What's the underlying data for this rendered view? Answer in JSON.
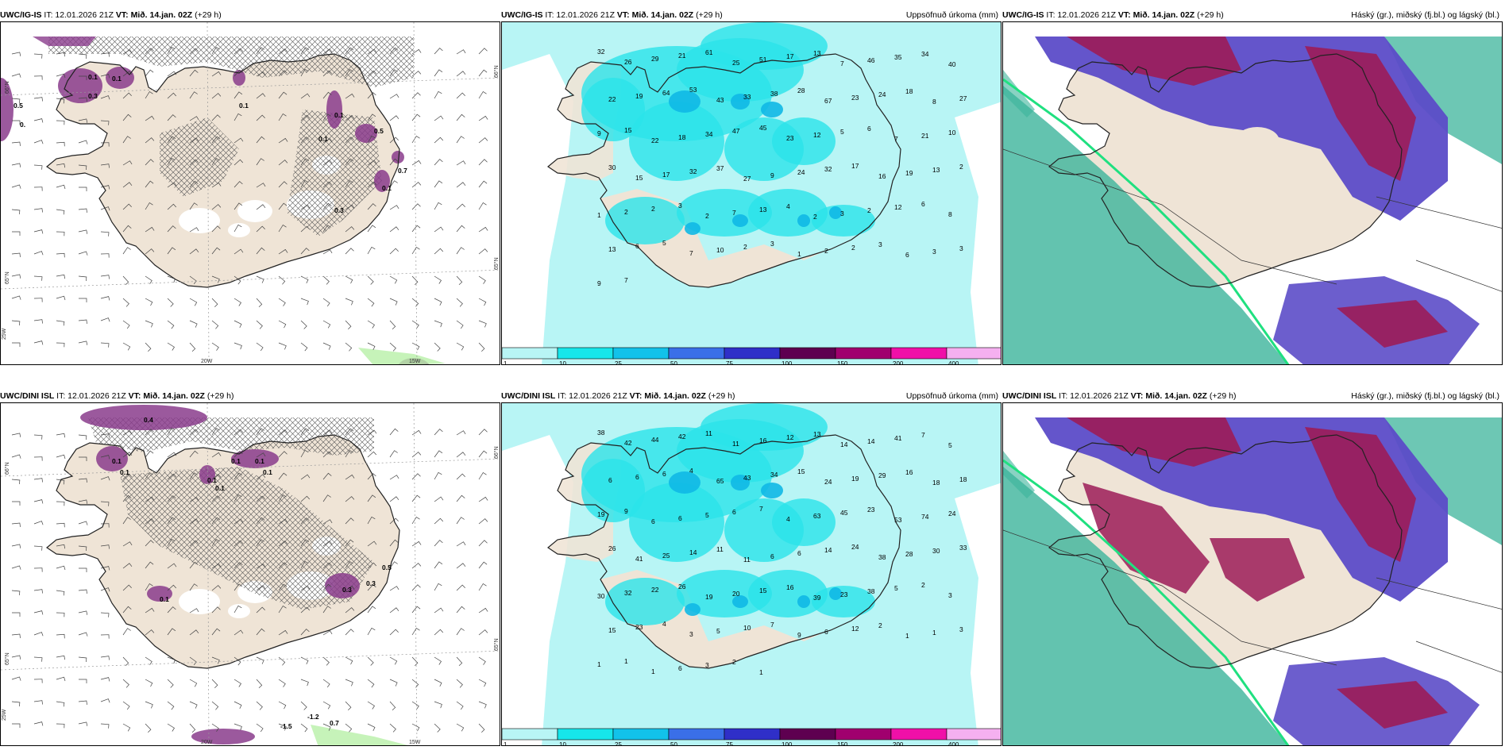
{
  "panels": [
    {
      "model": "UWC/IG-IS",
      "it": "IT: 12.01.2026 21Z",
      "vt_label": "VT:",
      "vt": "Mið. 14.jan. 02Z",
      "lead": "(+29 h)",
      "right_title": ""
    },
    {
      "model": "UWC/IG-IS",
      "it": "IT: 12.01.2026 21Z",
      "vt_label": "VT:",
      "vt": "Mið. 14.jan. 02Z",
      "lead": "(+29 h)",
      "right_title": "Uppsöfnuð úrkoma (mm)"
    },
    {
      "model": "UWC/IG-IS",
      "it": "IT: 12.01.2026 21Z",
      "vt_label": "VT:",
      "vt": "Mið. 14.jan. 02Z",
      "lead": "(+29 h)",
      "right_title": "Háský (gr.), miðský (fj.bl.) og lágský (bl.)"
    },
    {
      "model": "UWC/DINI ISL",
      "it": "IT: 12.01.2026 21Z",
      "vt_label": "VT:",
      "vt": "Mið. 14.jan. 02Z",
      "lead": "(+29 h)",
      "right_title": ""
    },
    {
      "model": "UWC/DINI ISL",
      "it": "IT: 12.01.2026 21Z",
      "vt_label": "VT:",
      "vt": "Mið. 14.jan. 02Z",
      "lead": "(+29 h)",
      "right_title": "Uppsöfnuð úrkoma (mm)"
    },
    {
      "model": "UWC/DINI ISL",
      "it": "IT: 12.01.2026 21Z",
      "vt_label": "VT:",
      "vt": "Mið. 14.jan. 02Z",
      "lead": "(+29 h)",
      "right_title": "Háský (gr.), miðský (fj.bl.) og lágský (bl.)"
    }
  ],
  "axis_labels": {
    "lat66": "66°N",
    "lat65": "65°N",
    "lon25": "25W",
    "lon20": "20W",
    "lon15": "15W"
  },
  "colorbar": {
    "labels": [
      "1",
      "10",
      "25",
      "50",
      "75",
      "100",
      "150",
      "200",
      "400"
    ],
    "colors": [
      "#b8f5f5",
      "#16e6ea",
      "#12c2ea",
      "#3a6fe8",
      "#2f2fc8",
      "#5e0050",
      "#a0006e",
      "#f010a8",
      "#f5b0f0"
    ]
  },
  "colors": {
    "land": "#efe4d6",
    "precip_light": "#b8f5f5",
    "precip_mid": "#2be3ea",
    "precip_strong": "#10b8e6",
    "purple": "#8a3c8c",
    "high_cloud": "#3cb49b",
    "mid_cloud": "#9c1c58",
    "low_cloud": "#5c4cc8"
  },
  "values": {
    "p0": [
      "0.5",
      "0.",
      "0.1",
      "0.1",
      "0.3",
      "0.1",
      "0.5",
      "0.7",
      "0.1",
      "0.1",
      "0.1",
      "0.3"
    ],
    "p1": [
      "32",
      "26",
      "29",
      "21",
      "61",
      "25",
      "51",
      "17",
      "13",
      "7",
      "46",
      "35",
      "34",
      "40",
      "22",
      "19",
      "64",
      "53",
      "43",
      "33",
      "38",
      "28",
      "67",
      "23",
      "24",
      "18",
      "8",
      "27",
      "9",
      "15",
      "22",
      "18",
      "34",
      "47",
      "45",
      "23",
      "12",
      "5",
      "6",
      "7",
      "21",
      "10",
      "30",
      "15",
      "17",
      "32",
      "37",
      "27",
      "9",
      "24",
      "32",
      "17",
      "16",
      "19",
      "13",
      "2",
      "1",
      "2",
      "2",
      "3",
      "2",
      "7",
      "13",
      "4",
      "2",
      "3",
      "2",
      "12",
      "6",
      "8",
      "13",
      "6",
      "5",
      "7",
      "10",
      "2",
      "3",
      "1",
      "2",
      "2",
      "3",
      "6",
      "3",
      "3",
      "9",
      "7"
    ],
    "p3": [
      "0.4",
      "0.1",
      "0.1",
      "0.1",
      "0.1",
      "0.1",
      "0.1",
      "0.1",
      "0.1",
      "0.3",
      "0.3",
      "0.5",
      "-1.2",
      "-1.5",
      "0.7"
    ],
    "p4": [
      "38",
      "42",
      "44",
      "42",
      "11",
      "11",
      "16",
      "12",
      "13",
      "14",
      "14",
      "41",
      "7",
      "5",
      "6",
      "6",
      "6",
      "4",
      "65",
      "43",
      "34",
      "15",
      "24",
      "19",
      "29",
      "16",
      "18",
      "18",
      "19",
      "9",
      "6",
      "6",
      "5",
      "6",
      "7",
      "4",
      "63",
      "45",
      "23",
      "53",
      "74",
      "24",
      "26",
      "41",
      "25",
      "14",
      "11",
      "11",
      "6",
      "6",
      "14",
      "24",
      "38",
      "28",
      "30",
      "33",
      "30",
      "32",
      "22",
      "26",
      "19",
      "20",
      "15",
      "16",
      "39",
      "23",
      "38",
      "5",
      "2",
      "3",
      "15",
      "23",
      "4",
      "3",
      "5",
      "10",
      "7",
      "9",
      "6",
      "12",
      "2",
      "1",
      "1",
      "3",
      "1",
      "1",
      "1",
      "6",
      "3",
      "2",
      "1"
    ]
  }
}
